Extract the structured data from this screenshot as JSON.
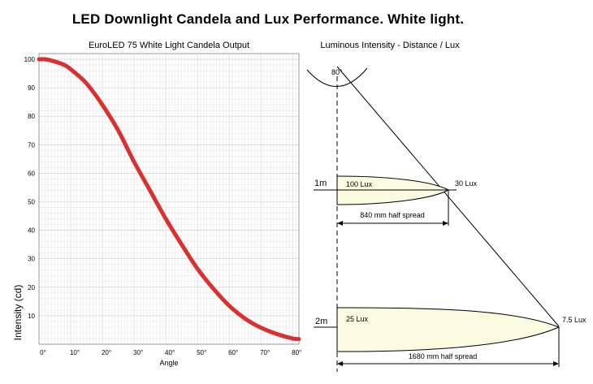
{
  "page_title": "LED Downlight Candela and Lux Performance. White light.",
  "colors": {
    "curve": "#d93030",
    "beam_fill": "#fbfbe0",
    "grid_minor": "#e6e6e6",
    "grid_major": "#cccccc"
  },
  "chart_data": [
    {
      "type": "line",
      "title": "EuroLED 75 White Light Candela Output",
      "xlabel": "Angle",
      "ylabel": "Intensity (cd)",
      "xlim": [
        0,
        82
      ],
      "ylim": [
        0,
        102
      ],
      "x_ticks": [
        0,
        10,
        20,
        30,
        40,
        50,
        60,
        70,
        80
      ],
      "x_tick_labels": [
        "0°",
        "10°",
        "20°",
        "30°",
        "40°",
        "50°",
        "60°",
        "70°",
        "80°"
      ],
      "y_ticks": [
        10,
        20,
        30,
        40,
        50,
        60,
        70,
        80,
        90,
        100
      ],
      "y_tick_labels": [
        "10",
        "20",
        "30",
        "40",
        "50",
        "60",
        "70",
        "80",
        "90",
        "100"
      ],
      "grid": true,
      "series": [
        {
          "x": [
            0,
            2,
            5,
            8,
            10,
            15,
            20,
            25,
            30,
            35,
            40,
            45,
            50,
            55,
            60,
            65,
            70,
            75,
            80,
            82
          ],
          "y": [
            100,
            100,
            99.2,
            98,
            96.5,
            91.5,
            84,
            75,
            64,
            54,
            44,
            35,
            26.5,
            19.5,
            13.5,
            9,
            5.8,
            3.6,
            2,
            1.8
          ]
        }
      ]
    },
    {
      "type": "diagram",
      "title": "Luminous Intensity - Distance / Lux",
      "beam_angle_label": "80°",
      "levels": [
        {
          "distance_label": "1m",
          "center_lux_label": "100 Lux",
          "edge_lux_label": "30 Lux",
          "spread_label": "840 mm half spread",
          "distance_m": 1,
          "half_spread_mm": 840
        },
        {
          "distance_label": "2m",
          "center_lux_label": "25 Lux",
          "edge_lux_label": "7.5 Lux",
          "spread_label": "1680 mm half spread",
          "distance_m": 2,
          "half_spread_mm": 1680
        }
      ]
    }
  ]
}
